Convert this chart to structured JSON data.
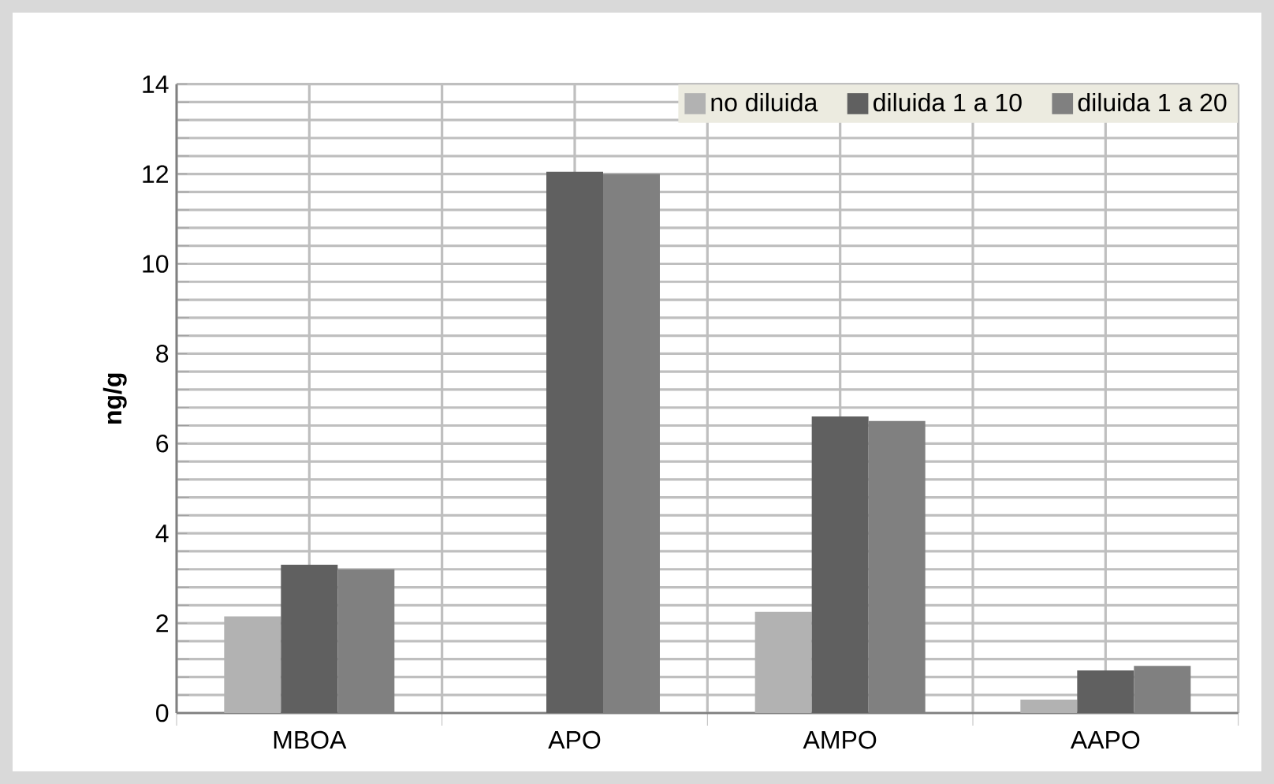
{
  "chart_data": {
    "type": "bar",
    "ylabel": "ng/g",
    "categories": [
      "MBOA",
      "APO",
      "AMPO",
      "AAPO"
    ],
    "series": [
      {
        "name": "no diluida",
        "color": "#b2b2b2",
        "values": [
          2.15,
          null,
          2.25,
          0.3
        ]
      },
      {
        "name": "diluida 1 a 10",
        "color": "#606060",
        "values": [
          3.3,
          12.05,
          6.6,
          0.95
        ]
      },
      {
        "name": "diluida 1 a 20",
        "color": "#808080",
        "values": [
          3.2,
          12.0,
          6.5,
          1.05
        ]
      }
    ],
    "ylim": [
      0,
      14
    ],
    "yticks": [
      0,
      2,
      4,
      6,
      8,
      10,
      12,
      14
    ],
    "grid": true,
    "legend": "top right"
  }
}
